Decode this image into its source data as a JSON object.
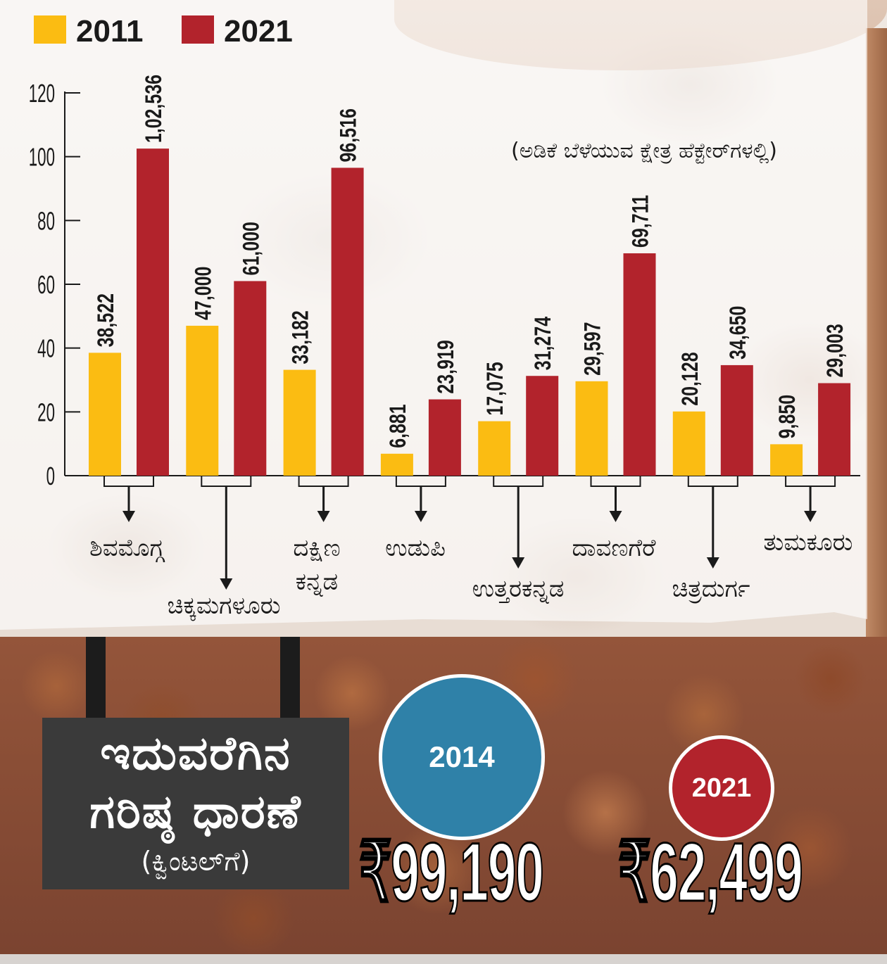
{
  "chart_data": {
    "type": "bar",
    "title": "",
    "subtitle": "(ಅಡಿಕೆ ಬೆಳೆಯುವ ಕ್ಷೇತ್ರ ಹೆಕ್ಟೇರ್‌ಗಳಲ್ಲಿ)",
    "xlabel": "",
    "ylabel": "",
    "ylim": [
      0,
      120
    ],
    "yticks": [
      "0",
      "20",
      "40",
      "60",
      "80",
      "100",
      "120"
    ],
    "legend_position": "top-left",
    "categories": [
      "ಶಿವಮೊಗ್ಗ",
      "ಚಿಕ್ಕಮಗಳೂರು",
      "ದಕ್ಷಿಣ ಕನ್ನಡ",
      "ಉಡುಪಿ",
      "ಉತ್ತರಕನ್ನಡ",
      "ದಾವಣಗೆರೆ",
      "ಚಿತ್ರದುರ್ಗ",
      "ತುಮಕೂರು"
    ],
    "series": [
      {
        "name": "2011",
        "color": "#fbbc12",
        "values": [
          38.522,
          47.0,
          33.182,
          6.881,
          17.075,
          29.597,
          20.128,
          9.85
        ],
        "labels": [
          "38,522",
          "47,000",
          "33,182",
          "6,881",
          "17,075",
          "29,597",
          "20,128",
          "9,850"
        ]
      },
      {
        "name": "2021",
        "color": "#b2232c",
        "values": [
          102.536,
          61.0,
          96.516,
          23.919,
          31.274,
          69.711,
          34.65,
          29.003
        ],
        "labels": [
          "1,02,536",
          "61,000",
          "96,516",
          "23,919",
          "31,274",
          "69,711",
          "34,650",
          "29,003"
        ]
      }
    ],
    "grid": false
  },
  "sign": {
    "line1": "ಇದುವರೆಗಿನ",
    "line2": "ಗರಿಷ್ಠ ಧಾರಣೆ",
    "line3": "(ಕ್ವಿಂಟಲ್‌ಗೆ)"
  },
  "highlights": [
    {
      "year": "2014",
      "price": "₹99,190",
      "color": "#2f81a8"
    },
    {
      "year": "2021",
      "price": "₹62,499",
      "color": "#b2232c"
    }
  ]
}
